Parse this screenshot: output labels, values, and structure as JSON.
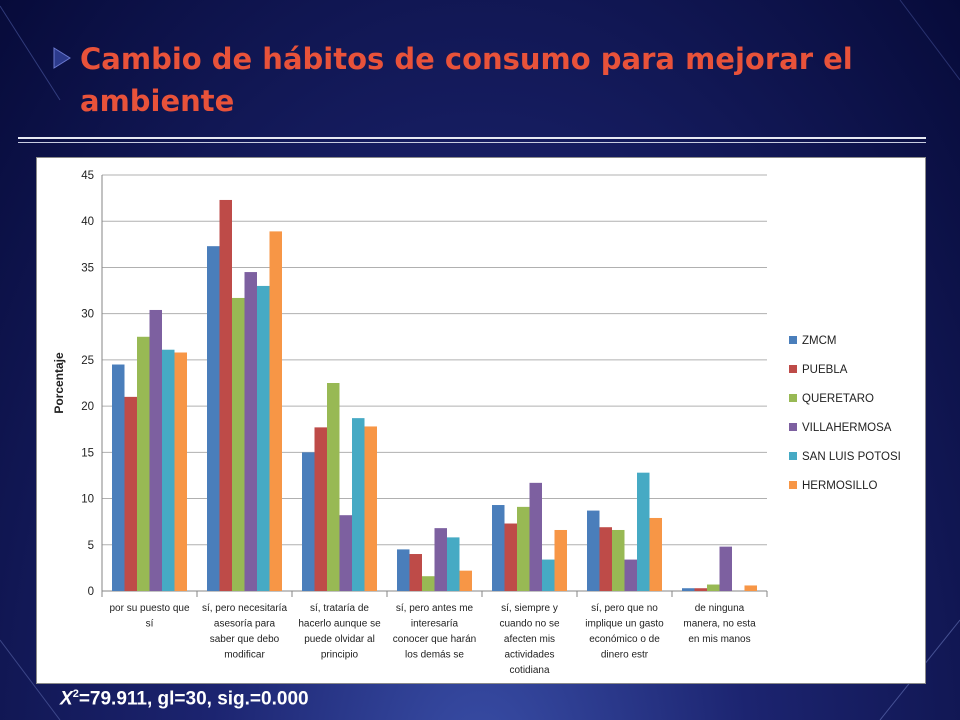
{
  "slide": {
    "title": "Cambio de hábitos de consumo para mejorar el ambiente",
    "stat_prefix": "X",
    "stat_sup": "2",
    "stat_rest": "=79.911, gl=30, sig.=0.000"
  },
  "chart_data": {
    "type": "bar",
    "title": "",
    "xlabel": "",
    "ylabel": "Porcentaje",
    "ylim": [
      0,
      45
    ],
    "yticks": [
      0,
      5,
      10,
      15,
      20,
      25,
      30,
      35,
      40,
      45
    ],
    "grid": true,
    "legend_position": "right",
    "categories": [
      [
        "por su puesto que",
        "sí"
      ],
      [
        "sí, pero necesitaría",
        "asesoría para",
        "saber que debo",
        "modificar"
      ],
      [
        "sí, trataría de",
        "hacerlo aunque se",
        "puede olvidar al",
        "principio"
      ],
      [
        "sí, pero antes me",
        "interesaría",
        "conocer que harán",
        "los demás se"
      ],
      [
        "sí, siempre y",
        "cuando no se",
        "afecten mis",
        "actividades",
        "cotidiana"
      ],
      [
        "sí, pero que no",
        "implique un gasto",
        "económico o de",
        "dinero estr"
      ],
      [
        "de ninguna",
        "manera, no esta",
        "en mis manos"
      ]
    ],
    "series": [
      {
        "name": "ZMCM",
        "color": "#4a7ebb",
        "values": [
          24.5,
          37.3,
          15.0,
          4.5,
          9.3,
          8.7,
          0.3
        ]
      },
      {
        "name": "PUEBLA",
        "color": "#be4b48",
        "values": [
          21.0,
          42.3,
          17.7,
          4.0,
          7.3,
          6.9,
          0.3
        ]
      },
      {
        "name": "QUERETARO",
        "color": "#98b954",
        "values": [
          27.5,
          31.7,
          22.5,
          1.6,
          9.1,
          6.6,
          0.7
        ]
      },
      {
        "name": "VILLAHERMOSA",
        "color": "#7d60a0",
        "values": [
          30.4,
          34.5,
          8.2,
          6.8,
          11.7,
          3.4,
          4.8
        ]
      },
      {
        "name": "SAN LUIS POTOSI",
        "color": "#46aac4",
        "values": [
          26.1,
          33.0,
          18.7,
          5.8,
          3.4,
          12.8,
          0.0
        ]
      },
      {
        "name": "HERMOSILLO",
        "color": "#f79646",
        "values": [
          25.8,
          38.9,
          17.8,
          2.2,
          6.6,
          7.9,
          0.6
        ]
      }
    ]
  }
}
